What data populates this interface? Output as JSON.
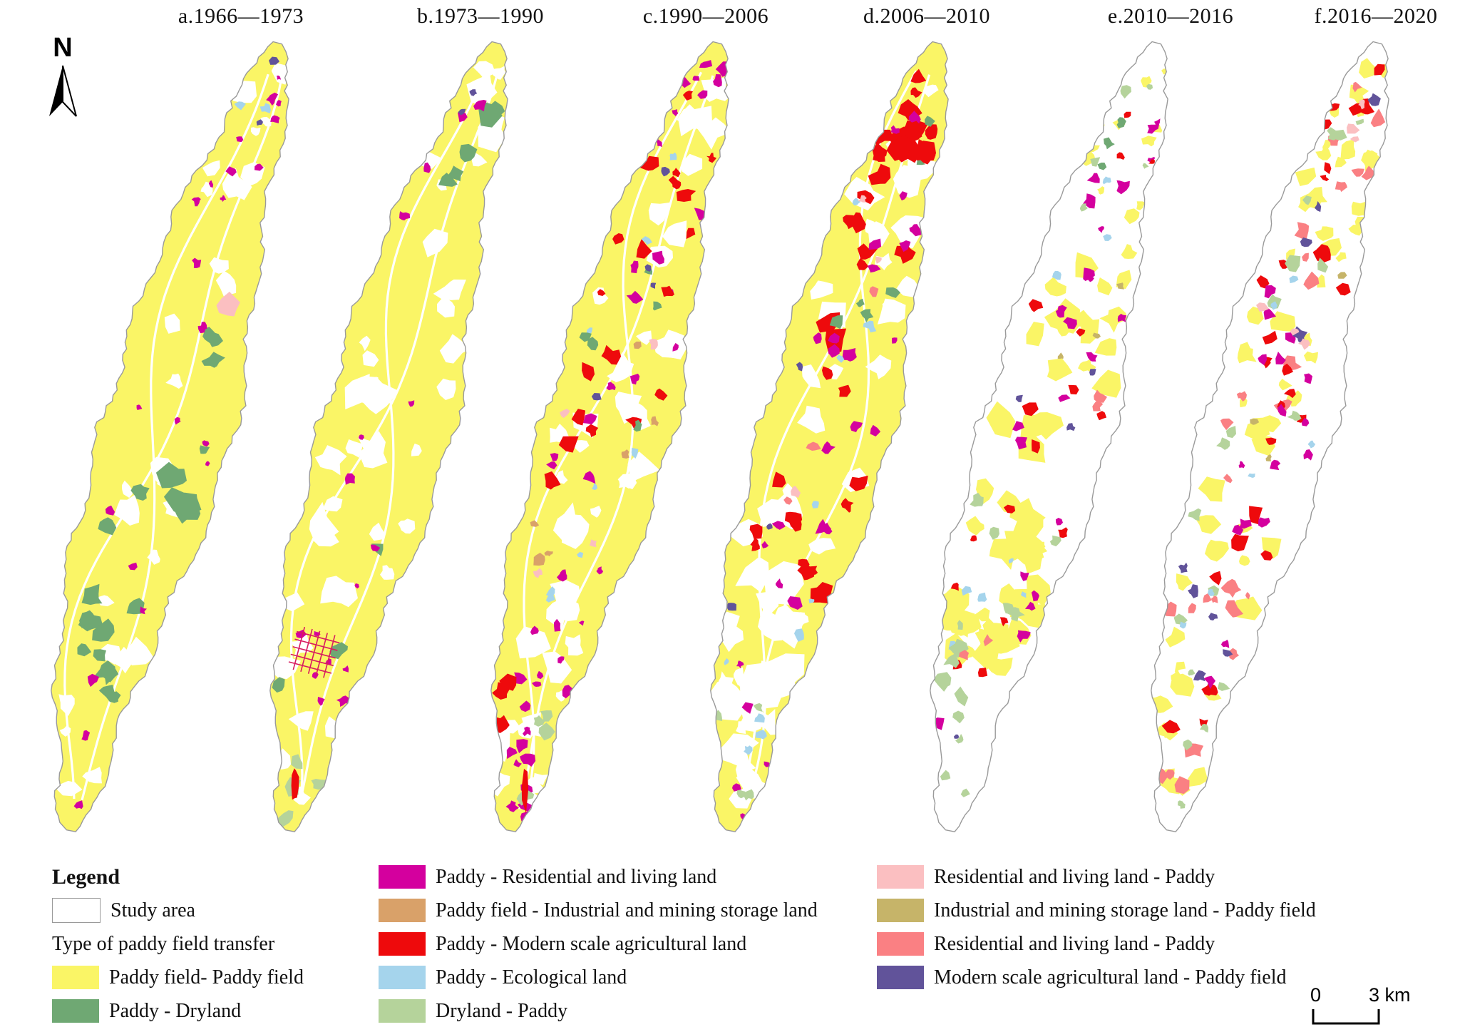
{
  "north_label": "N",
  "scalebar": {
    "left_label": "0",
    "right_label": "3 km"
  },
  "colors": {
    "outline": "#9a9a9a",
    "paddy_paddy": "#faf566",
    "paddy_dryland": "#6fa873",
    "paddy_residential": "#d4009e",
    "paddy_industrial": "#d9a169",
    "paddy_modern_agri": "#ee0a0c",
    "paddy_ecological": "#a5d4ec",
    "dryland_paddy": "#b5d39b",
    "residential_paddy_light": "#fbbfc1",
    "industrial_paddy": "#c6b469",
    "residential_paddy": "#fa8083",
    "modern_agri_paddy": "#61539a",
    "hatch": "#d81b60",
    "white": "#ffffff"
  },
  "legend": {
    "title": "Legend",
    "study_area_label": "Study area",
    "subtitle": "Type of paddy field transfer",
    "col1_items": [
      {
        "k": "paddy_paddy",
        "label": "Paddy field- Paddy field"
      },
      {
        "k": "paddy_dryland",
        "label": "Paddy - Dryland"
      }
    ],
    "col2_items": [
      {
        "k": "paddy_residential",
        "label": "Paddy - Residential and living land"
      },
      {
        "k": "paddy_industrial",
        "label": "Paddy  field - Industrial and mining storage land"
      },
      {
        "k": "paddy_modern_agri",
        "label": "Paddy - Modern scale agricultural land"
      },
      {
        "k": "paddy_ecological",
        "label": "Paddy - Ecological land"
      },
      {
        "k": "dryland_paddy",
        "label": "Dryland - Paddy"
      }
    ],
    "col3_items": [
      {
        "k": "residential_paddy_light",
        "label": "Residential and living land - Paddy"
      },
      {
        "k": "industrial_paddy",
        "label": "Industrial and mining storage land - Paddy field"
      },
      {
        "k": "residential_paddy",
        "label": "Residential and living land - Paddy"
      },
      {
        "k": "modern_agri_paddy",
        "label": "Modern scale agricultural land - Paddy field"
      }
    ]
  },
  "panels": [
    {
      "id": "a",
      "title": "a.1966—1973",
      "base": "paddy_paddy",
      "rivers": 2,
      "hatch": false,
      "holes": [
        {
          "n": 26,
          "s": [
            6,
            20
          ],
          "t": [
            0.03,
            0.97
          ]
        }
      ],
      "patches": [
        {
          "k": "paddy_dryland",
          "n": 12,
          "s": [
            7,
            16
          ],
          "t": [
            0.35,
            0.92
          ]
        },
        {
          "k": "paddy_dryland",
          "n": 3,
          "s": [
            16,
            28
          ],
          "t": [
            0.42,
            0.58
          ],
          "u": [
            0.35,
            0.9
          ]
        },
        {
          "k": "paddy_dryland",
          "n": 4,
          "s": [
            10,
            18
          ],
          "t": [
            0.74,
            0.9
          ],
          "u": [
            -0.8,
            0.4
          ]
        },
        {
          "k": "paddy_residential",
          "n": 22,
          "s": [
            3,
            8
          ],
          "t": [
            0.04,
            0.97
          ]
        },
        {
          "k": "residential_paddy_light",
          "n": 1,
          "s": [
            15,
            20
          ],
          "t": [
            0.3,
            0.34
          ],
          "u": [
            0.25,
            0.65
          ]
        },
        {
          "k": "paddy_ecological",
          "n": 2,
          "s": [
            4,
            7
          ],
          "t": [
            0.08,
            0.3
          ]
        },
        {
          "k": "modern_agri_paddy",
          "n": 2,
          "s": [
            4,
            7
          ],
          "t": [
            0.02,
            0.1
          ],
          "u": [
            -0.3,
            0.9
          ]
        }
      ]
    },
    {
      "id": "b",
      "title": "b.1973—1990",
      "base": "paddy_paddy",
      "rivers": 2,
      "hatch": true,
      "holes": [
        {
          "n": 36,
          "s": [
            7,
            24
          ],
          "t": [
            0.03,
            0.97
          ]
        }
      ],
      "patches": [
        {
          "k": "paddy_dryland",
          "n": 5,
          "s": [
            8,
            18
          ],
          "t": [
            0.03,
            0.2
          ],
          "u": [
            -0.2,
            0.95
          ]
        },
        {
          "k": "paddy_dryland",
          "n": 3,
          "s": [
            6,
            12
          ],
          "t": [
            0.5,
            0.9
          ]
        },
        {
          "k": "paddy_residential",
          "n": 16,
          "s": [
            3,
            8
          ],
          "t": [
            0.05,
            0.95
          ]
        },
        {
          "k": "dryland_paddy",
          "n": 4,
          "s": [
            8,
            15
          ],
          "t": [
            0.86,
            0.99
          ]
        },
        {
          "k": "paddy_modern_agri",
          "n": 1,
          "s": [
            8,
            10
          ],
          "t": [
            0.93,
            0.97
          ],
          "el": [
            0.5,
            2.2
          ]
        },
        {
          "k": "modern_agri_paddy",
          "n": 2,
          "s": [
            3,
            6
          ],
          "t": [
            0.0,
            0.15
          ]
        }
      ]
    },
    {
      "id": "c",
      "title": "c.1990—2006",
      "base": "paddy_paddy",
      "rivers": 2,
      "hatch": false,
      "holes": [
        {
          "n": 42,
          "s": [
            7,
            22
          ],
          "t": [
            0.03,
            0.97
          ]
        }
      ],
      "patches": [
        {
          "k": "paddy_residential",
          "n": 40,
          "s": [
            4,
            10
          ],
          "t": [
            0.02,
            0.98
          ]
        },
        {
          "k": "paddy_modern_agri",
          "n": 22,
          "s": [
            5,
            13
          ],
          "t": [
            0.05,
            0.95
          ]
        },
        {
          "k": "paddy_industrial",
          "n": 6,
          "s": [
            4,
            8
          ],
          "t": [
            0.3,
            0.72
          ]
        },
        {
          "k": "paddy_ecological",
          "n": 8,
          "s": [
            4,
            7
          ],
          "t": [
            0.1,
            0.8
          ]
        },
        {
          "k": "paddy_dryland",
          "n": 5,
          "s": [
            6,
            11
          ],
          "t": [
            0.05,
            0.5
          ]
        },
        {
          "k": "modern_agri_paddy",
          "n": 4,
          "s": [
            4,
            7
          ],
          "t": [
            0.1,
            0.55
          ]
        },
        {
          "k": "residential_paddy_light",
          "n": 4,
          "s": [
            4,
            8
          ],
          "t": [
            0.3,
            0.8
          ]
        },
        {
          "k": "dryland_paddy",
          "n": 4,
          "s": [
            7,
            12
          ],
          "t": [
            0.85,
            0.98
          ]
        },
        {
          "k": "paddy_modern_agri",
          "n": 1,
          "s": [
            10,
            13
          ],
          "t": [
            0.94,
            0.975
          ],
          "el": [
            0.5,
            2.4
          ]
        }
      ]
    },
    {
      "id": "d",
      "title": "d.2006—2010",
      "base": "paddy_paddy",
      "rivers": 2,
      "hatch": false,
      "holes": [
        {
          "n": 40,
          "s": [
            8,
            24
          ],
          "t": [
            0.03,
            0.97
          ]
        },
        {
          "n": 14,
          "s": [
            14,
            30
          ],
          "t": [
            0.68,
            0.97
          ]
        }
      ],
      "patches": [
        {
          "k": "paddy_modern_agri",
          "n": 30,
          "s": [
            6,
            16
          ],
          "t": [
            0.04,
            0.72
          ]
        },
        {
          "k": "paddy_modern_agri",
          "n": 6,
          "s": [
            12,
            22
          ],
          "t": [
            0.1,
            0.4
          ],
          "u": [
            -0.6,
            0.8
          ]
        },
        {
          "k": "paddy_residential",
          "n": 26,
          "s": [
            4,
            10
          ],
          "t": [
            0.05,
            0.98
          ]
        },
        {
          "k": "paddy_ecological",
          "n": 10,
          "s": [
            4,
            8
          ],
          "t": [
            0.05,
            0.9
          ]
        },
        {
          "k": "paddy_dryland",
          "n": 6,
          "s": [
            5,
            10
          ],
          "t": [
            0.05,
            0.45
          ]
        },
        {
          "k": "dryland_paddy",
          "n": 4,
          "s": [
            6,
            10
          ],
          "t": [
            0.8,
            0.97
          ]
        },
        {
          "k": "residential_paddy",
          "n": 3,
          "s": [
            5,
            9
          ],
          "t": [
            0.3,
            0.6
          ]
        },
        {
          "k": "modern_agri_paddy",
          "n": 3,
          "s": [
            4,
            7
          ],
          "t": [
            0.3,
            0.8
          ]
        },
        {
          "k": "residential_paddy_light",
          "n": 3,
          "s": [
            5,
            8
          ],
          "t": [
            0.2,
            0.6
          ]
        }
      ]
    },
    {
      "id": "e",
      "title": "e.2010—2016",
      "base": "white",
      "rivers": 0,
      "hatch": false,
      "holes": [],
      "patches": [
        {
          "k": "paddy_paddy",
          "n": 46,
          "s": [
            10,
            24
          ],
          "t": [
            0.28,
            0.8
          ]
        },
        {
          "k": "paddy_paddy",
          "n": 12,
          "s": [
            4,
            10
          ],
          "t": [
            0.03,
            0.28
          ]
        },
        {
          "k": "paddy_residential",
          "n": 22,
          "s": [
            4,
            9
          ],
          "t": [
            0.05,
            0.95
          ]
        },
        {
          "k": "paddy_modern_agri",
          "n": 16,
          "s": [
            4,
            9
          ],
          "t": [
            0.05,
            0.8
          ]
        },
        {
          "k": "paddy_ecological",
          "n": 8,
          "s": [
            4,
            7
          ],
          "t": [
            0.05,
            0.85
          ]
        },
        {
          "k": "dryland_paddy",
          "n": 14,
          "s": [
            5,
            12
          ],
          "t": [
            0.6,
            0.98
          ]
        },
        {
          "k": "dryland_paddy",
          "n": 5,
          "s": [
            4,
            8
          ],
          "t": [
            0.05,
            0.3
          ]
        },
        {
          "k": "industrial_paddy",
          "n": 3,
          "s": [
            4,
            6
          ],
          "t": [
            0.2,
            0.6
          ]
        },
        {
          "k": "modern_agri_paddy",
          "n": 4,
          "s": [
            4,
            7
          ],
          "t": [
            0.3,
            0.9
          ]
        },
        {
          "k": "residential_paddy",
          "n": 4,
          "s": [
            4,
            8
          ],
          "t": [
            0.4,
            0.8
          ]
        },
        {
          "k": "paddy_dryland",
          "n": 3,
          "s": [
            4,
            8
          ],
          "t": [
            0.1,
            0.4
          ]
        }
      ]
    },
    {
      "id": "f",
      "title": "f.2016—2020",
      "base": "white",
      "rivers": 0,
      "hatch": false,
      "holes": [],
      "patches": [
        {
          "k": "paddy_paddy",
          "n": 22,
          "s": [
            6,
            14
          ],
          "t": [
            0.02,
            0.3
          ]
        },
        {
          "k": "paddy_paddy",
          "n": 32,
          "s": [
            7,
            18
          ],
          "t": [
            0.35,
            0.95
          ]
        },
        {
          "k": "residential_paddy",
          "n": 26,
          "s": [
            5,
            13
          ],
          "t": [
            0.05,
            0.95
          ]
        },
        {
          "k": "paddy_modern_agri",
          "n": 26,
          "s": [
            5,
            12
          ],
          "t": [
            0.02,
            0.9
          ]
        },
        {
          "k": "paddy_residential",
          "n": 16,
          "s": [
            4,
            9
          ],
          "t": [
            0.3,
            0.85
          ]
        },
        {
          "k": "modern_agri_paddy",
          "n": 10,
          "s": [
            5,
            9
          ],
          "t": [
            0.02,
            0.9
          ]
        },
        {
          "k": "dryland_paddy",
          "n": 18,
          "s": [
            5,
            11
          ],
          "t": [
            0.05,
            0.98
          ]
        },
        {
          "k": "paddy_ecological",
          "n": 6,
          "s": [
            4,
            6
          ],
          "t": [
            0.3,
            0.8
          ]
        },
        {
          "k": "residential_paddy_light",
          "n": 6,
          "s": [
            4,
            8
          ],
          "t": [
            0.05,
            0.5
          ]
        },
        {
          "k": "industrial_paddy",
          "n": 3,
          "s": [
            4,
            6
          ],
          "t": [
            0.1,
            0.6
          ]
        }
      ]
    }
  ]
}
